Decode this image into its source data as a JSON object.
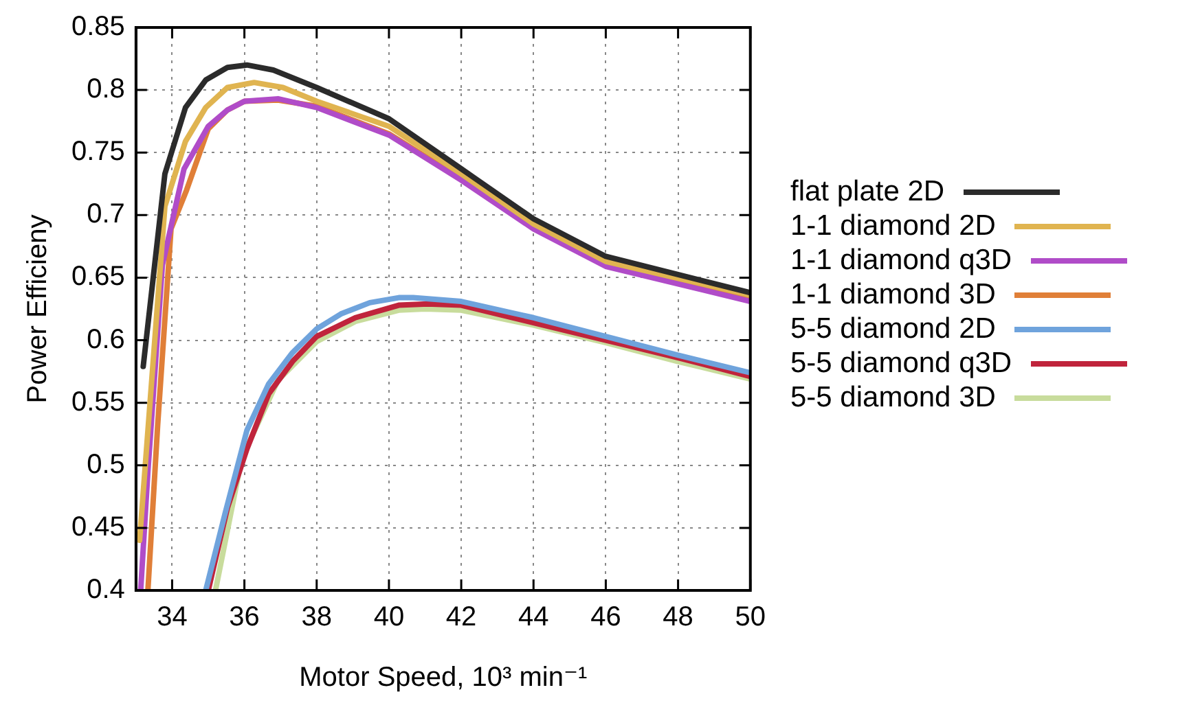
{
  "chart_data": {
    "type": "line",
    "xlabel": "Motor Speed, 10³ min⁻¹",
    "ylabel": "Power Efficieny",
    "xlim": [
      33,
      50
    ],
    "xticks": [
      34,
      36,
      38,
      40,
      42,
      44,
      46,
      48,
      50
    ],
    "ylim": [
      0.4,
      0.85
    ],
    "yticks": [
      0.4,
      0.45,
      0.5,
      0.55,
      0.6,
      0.65,
      0.7,
      0.75,
      0.8,
      0.85
    ],
    "grid": true,
    "legend": "right",
    "marker": "none",
    "line_style": "solid",
    "series": [
      {
        "name": "flat plate 2D",
        "color": "#2b2b2b",
        "x": [
          33.2,
          33.8,
          34.37,
          34.93,
          35.53,
          36.07,
          36.8,
          38,
          40,
          42,
          44,
          46,
          50
        ],
        "values": [
          0.579,
          0.733,
          0.786,
          0.808,
          0.818,
          0.82,
          0.816,
          0.802,
          0.777,
          0.737,
          0.697,
          0.667,
          0.638
        ]
      },
      {
        "name": "1-1 diamond 2D",
        "color": "#e0b450",
        "x": [
          33.1,
          33.8,
          34.37,
          34.93,
          35.53,
          36.27,
          37.07,
          38,
          40,
          42,
          44,
          46,
          50
        ],
        "values": [
          0.44,
          0.707,
          0.759,
          0.786,
          0.802,
          0.806,
          0.802,
          0.791,
          0.771,
          0.733,
          0.693,
          0.663,
          0.636
        ]
      },
      {
        "name": "1-1 diamond q3D",
        "color": "#b04cc8",
        "x": [
          33.13,
          33.33,
          33.73,
          34.33,
          35,
          35.53,
          36,
          36.93,
          38,
          40,
          42,
          44,
          46,
          50
        ],
        "values": [
          0.4,
          0.495,
          0.66,
          0.737,
          0.771,
          0.784,
          0.791,
          0.793,
          0.786,
          0.764,
          0.728,
          0.689,
          0.659,
          0.631
        ]
      },
      {
        "name": "1-1 diamond 3D",
        "color": "#e07f38",
        "x": [
          33.33,
          33.6,
          33.97,
          34.4,
          35,
          35.53,
          36,
          36.93,
          38,
          40,
          42,
          44,
          46,
          50
        ],
        "values": [
          0.4,
          0.532,
          0.689,
          0.72,
          0.769,
          0.784,
          0.791,
          0.792,
          0.787,
          0.765,
          0.729,
          0.69,
          0.66,
          0.633
        ]
      },
      {
        "name": "5-5 diamond 2D",
        "color": "#6fa3dc",
        "x": [
          34.93,
          35.47,
          36.07,
          36.67,
          37.33,
          38,
          38.67,
          39.47,
          40.27,
          40.67,
          42,
          44,
          46,
          48,
          50
        ],
        "values": [
          0.4,
          0.462,
          0.528,
          0.565,
          0.59,
          0.609,
          0.621,
          0.63,
          0.634,
          0.634,
          0.631,
          0.618,
          0.603,
          0.588,
          0.574
        ]
      },
      {
        "name": "5-5 diamond q3D",
        "color": "#c0243c",
        "x": [
          35,
          35.53,
          36.07,
          36.67,
          37.33,
          38,
          39.07,
          40.27,
          41.07,
          42,
          44,
          46,
          48,
          50
        ],
        "values": [
          0.4,
          0.466,
          0.513,
          0.557,
          0.583,
          0.603,
          0.618,
          0.628,
          0.629,
          0.628,
          0.614,
          0.6,
          0.586,
          0.571
        ]
      },
      {
        "name": "5-5 diamond 3D",
        "color": "#c8dc9c",
        "x": [
          35.2,
          35.93,
          36.93,
          38,
          39.07,
          40.27,
          41,
          42,
          44,
          46,
          48,
          50
        ],
        "values": [
          0.4,
          0.506,
          0.568,
          0.599,
          0.615,
          0.624,
          0.625,
          0.624,
          0.612,
          0.598,
          0.583,
          0.569
        ]
      }
    ]
  }
}
